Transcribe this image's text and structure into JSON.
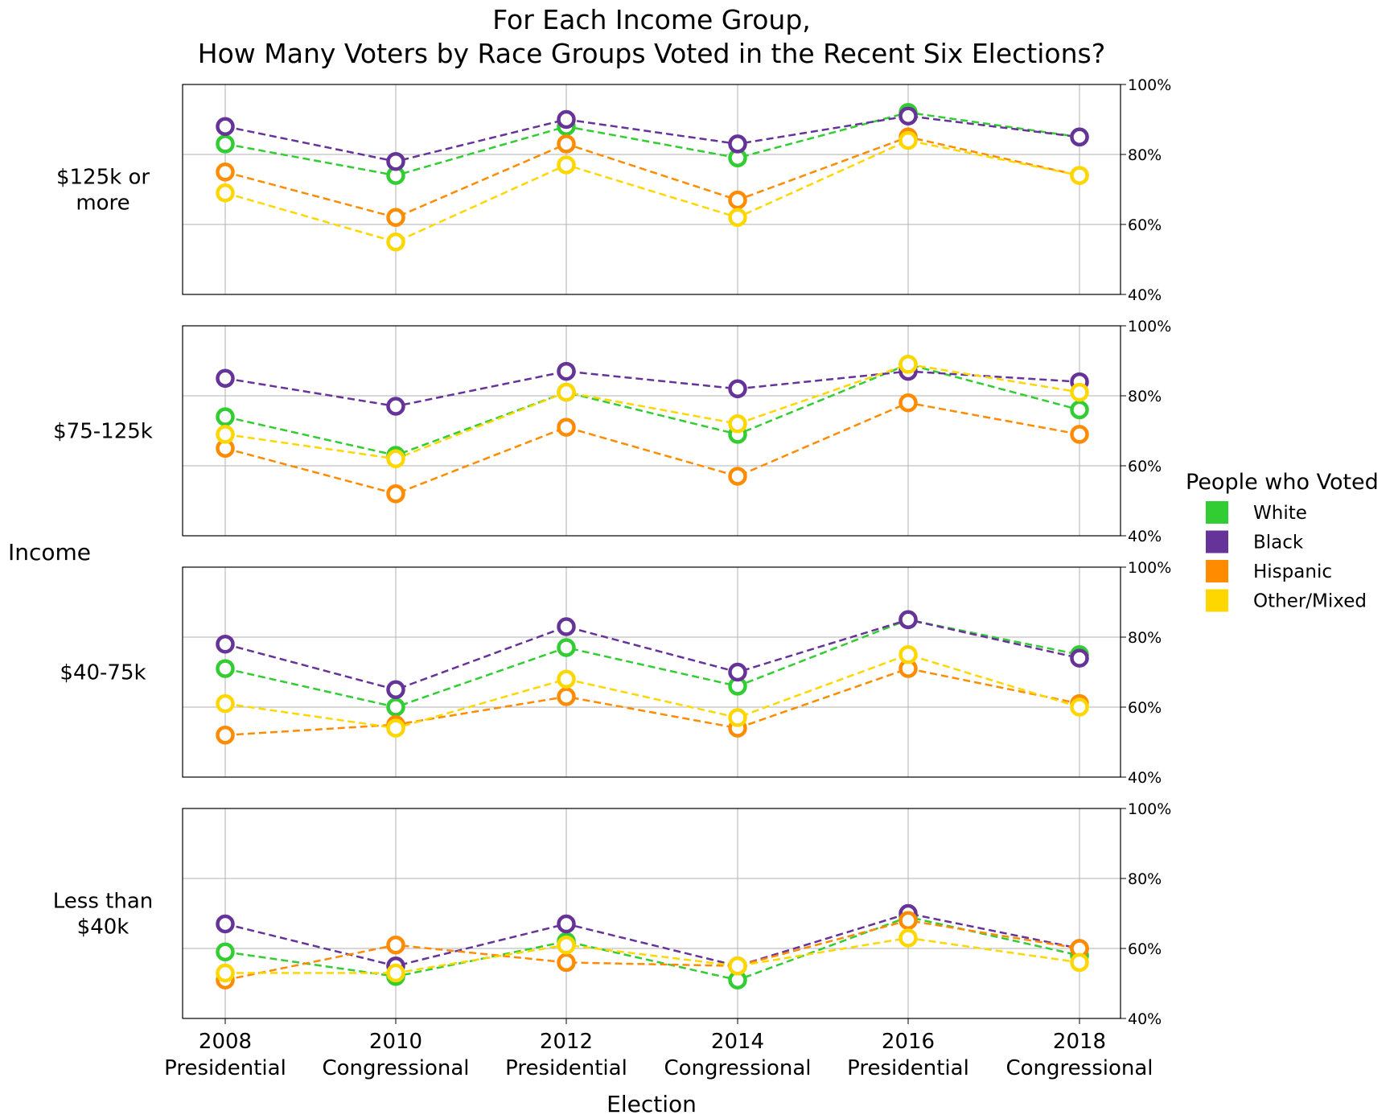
{
  "chart_data": {
    "type": "line",
    "title_lines": [
      "For Each Income Group,",
      "How Many Voters by Race Groups Voted in the Recent Six Elections?"
    ],
    "xlabel": "Election",
    "ylabel": "Income",
    "x": [
      {
        "year": "2008",
        "kind": "Presidential"
      },
      {
        "year": "2010",
        "kind": "Congressional"
      },
      {
        "year": "2012",
        "kind": "Presidential"
      },
      {
        "year": "2014",
        "kind": "Congressional"
      },
      {
        "year": "2016",
        "kind": "Presidential"
      },
      {
        "year": "2018",
        "kind": "Congressional"
      }
    ],
    "ylim": [
      40,
      100
    ],
    "yticks": [
      "40%",
      "60%",
      "80%",
      "100%"
    ],
    "ytick_values": [
      40,
      60,
      80,
      100
    ],
    "grid": true,
    "legend": {
      "title": "People who Voted",
      "placement": "right",
      "entries": [
        "White",
        "Black",
        "Hispanic",
        "Other/Mixed"
      ]
    },
    "colors": {
      "White": "#32cd32",
      "Black": "#663399",
      "Hispanic": "#ff8c00",
      "Other/Mixed": "#ffd700"
    },
    "panels": [
      {
        "label_lines": [
          "$125k or",
          "more"
        ],
        "series": [
          {
            "name": "White",
            "values": [
              83,
              74,
              88,
              79,
              92,
              85
            ]
          },
          {
            "name": "Black",
            "values": [
              88,
              78,
              90,
              83,
              91,
              85
            ]
          },
          {
            "name": "Hispanic",
            "values": [
              75,
              62,
              83,
              67,
              85,
              74
            ]
          },
          {
            "name": "Other/Mixed",
            "values": [
              69,
              55,
              77,
              62,
              84,
              74
            ]
          }
        ]
      },
      {
        "label_lines": [
          "$75-125k"
        ],
        "series": [
          {
            "name": "White",
            "values": [
              74,
              63,
              81,
              69,
              89,
              76
            ]
          },
          {
            "name": "Black",
            "values": [
              85,
              77,
              87,
              82,
              87,
              84
            ]
          },
          {
            "name": "Hispanic",
            "values": [
              65,
              52,
              71,
              57,
              78,
              69
            ]
          },
          {
            "name": "Other/Mixed",
            "values": [
              69,
              62,
              81,
              72,
              89,
              81
            ]
          }
        ]
      },
      {
        "label_lines": [
          "$40-75k"
        ],
        "series": [
          {
            "name": "White",
            "values": [
              71,
              60,
              77,
              66,
              85,
              75
            ]
          },
          {
            "name": "Black",
            "values": [
              78,
              65,
              83,
              70,
              85,
              74
            ]
          },
          {
            "name": "Hispanic",
            "values": [
              52,
              55,
              63,
              54,
              71,
              61
            ]
          },
          {
            "name": "Other/Mixed",
            "values": [
              61,
              54,
              68,
              57,
              75,
              60
            ]
          }
        ]
      },
      {
        "label_lines": [
          "Less than",
          "$40k"
        ],
        "series": [
          {
            "name": "White",
            "values": [
              59,
              52,
              62,
              51,
              69,
              58
            ]
          },
          {
            "name": "Black",
            "values": [
              67,
              55,
              67,
              55,
              70,
              60
            ]
          },
          {
            "name": "Hispanic",
            "values": [
              51,
              61,
              56,
              55,
              68,
              60
            ]
          },
          {
            "name": "Other/Mixed",
            "values": [
              53,
              53,
              61,
              55,
              63,
              56
            ]
          }
        ]
      }
    ]
  }
}
